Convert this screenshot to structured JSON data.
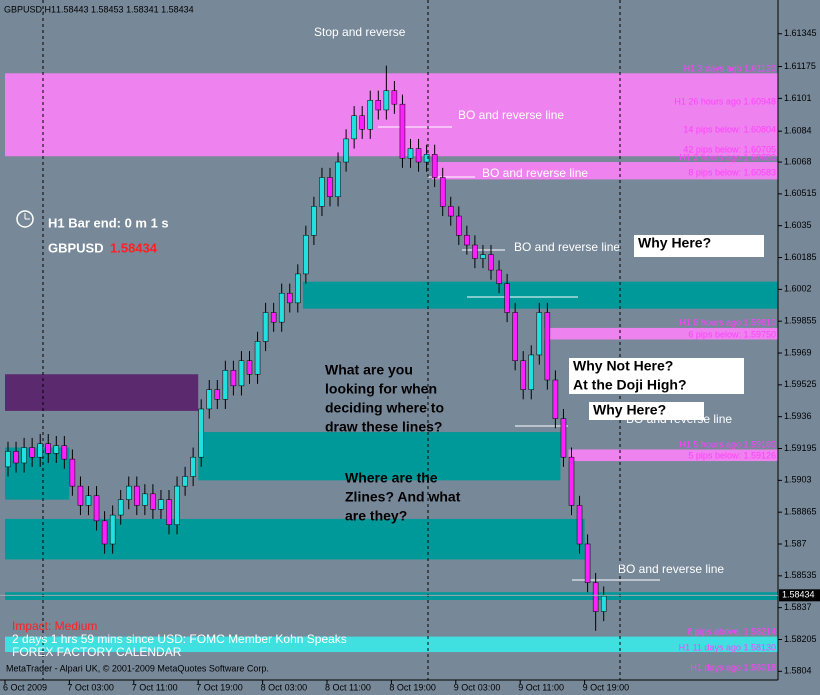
{
  "chart_data": {
    "type": "candlestick",
    "title": "GBPUSD,H1",
    "ohlc_text": "1.58443 1.58453 1.58341 1.58434",
    "ylim": [
      1.57995,
      1.6152
    ],
    "yticks": [
      1.61345,
      1.61175,
      1.6101,
      1.6084,
      1.6068,
      1.60515,
      1.6035,
      1.60185,
      1.6002,
      1.59855,
      1.5969,
      1.59525,
      1.5936,
      1.59195,
      1.5903,
      1.58865,
      1.587,
      1.58535,
      1.5837,
      1.58205,
      1.5804
    ],
    "last_price": 1.58434,
    "up_color": "#20e0e0",
    "down_color": "#ff20ff",
    "categories": [
      "6 Oct 2009",
      null,
      null,
      null,
      null,
      null,
      null,
      null,
      "7 Oct 03:00",
      null,
      null,
      null,
      null,
      null,
      null,
      null,
      "7 Oct 11:00",
      null,
      null,
      null,
      null,
      null,
      null,
      null,
      "7 Oct 19:00",
      null,
      null,
      null,
      null,
      null,
      null,
      null,
      "8 Oct 03:00",
      null,
      null,
      null,
      null,
      null,
      null,
      null,
      "8 Oct 11:00",
      null,
      null,
      null,
      null,
      null,
      null,
      null,
      "8 Oct 19:00",
      null,
      null,
      null,
      null,
      null,
      null,
      null,
      "9 Oct 03:00",
      null,
      null,
      null,
      null,
      null,
      null,
      null,
      "9 Oct 11:00",
      null,
      null,
      null,
      null,
      null,
      null,
      null,
      "9 Oct 19:00",
      null,
      null
    ],
    "open": [
      1.591,
      1.5918,
      1.5912,
      1.592,
      1.5915,
      1.5922,
      1.5917,
      1.5921,
      1.5914,
      1.59,
      1.589,
      1.5895,
      1.5882,
      1.587,
      1.5885,
      1.5893,
      1.59,
      1.589,
      1.5896,
      1.5888,
      1.5893,
      1.588,
      1.59,
      1.5905,
      1.5915,
      1.594,
      1.595,
      1.5945,
      1.596,
      1.5952,
      1.5965,
      1.5958,
      1.5975,
      1.599,
      1.5985,
      1.6,
      1.5995,
      1.601,
      1.603,
      1.6045,
      1.606,
      1.605,
      1.6068,
      1.608,
      1.6092,
      1.6085,
      1.61,
      1.6095,
      1.6105,
      1.6098,
      1.607,
      1.6075,
      1.6068,
      1.6072,
      1.606,
      1.6045,
      1.604,
      1.603,
      1.6025,
      1.6018,
      1.602,
      1.6012,
      1.6005,
      1.599,
      1.5965,
      1.595,
      1.5968,
      1.599,
      1.5955,
      1.5935,
      1.5915,
      1.589,
      1.587,
      1.585,
      1.5835
    ],
    "high": [
      1.5923,
      1.5923,
      1.5925,
      1.5925,
      1.5927,
      1.5927,
      1.5926,
      1.5926,
      1.5919,
      1.5905,
      1.59,
      1.59,
      1.5887,
      1.589,
      1.5898,
      1.5905,
      1.5905,
      1.5901,
      1.5901,
      1.5898,
      1.5898,
      1.5905,
      1.591,
      1.592,
      1.5945,
      1.5955,
      1.5955,
      1.5965,
      1.5965,
      1.597,
      1.597,
      1.598,
      1.5995,
      1.5995,
      1.6005,
      1.6005,
      1.6015,
      1.6035,
      1.605,
      1.6065,
      1.6065,
      1.6073,
      1.6085,
      1.6097,
      1.6097,
      1.6105,
      1.6105,
      1.6118,
      1.611,
      1.6103,
      1.608,
      1.608,
      1.6077,
      1.6077,
      1.6065,
      1.605,
      1.6045,
      1.6035,
      1.603,
      1.6025,
      1.6025,
      1.6017,
      1.601,
      1.5995,
      1.597,
      1.5973,
      1.5995,
      1.5995,
      1.596,
      1.594,
      1.592,
      1.5895,
      1.5875,
      1.5855,
      1.5848
    ],
    "low": [
      1.5905,
      1.5907,
      1.5907,
      1.591,
      1.591,
      1.5912,
      1.5912,
      1.5909,
      1.5895,
      1.5885,
      1.5885,
      1.5877,
      1.5865,
      1.5865,
      1.588,
      1.5888,
      1.5885,
      1.5885,
      1.5883,
      1.5883,
      1.5875,
      1.5875,
      1.5895,
      1.59,
      1.591,
      1.5935,
      1.594,
      1.594,
      1.5947,
      1.5947,
      1.5953,
      1.5953,
      1.597,
      1.598,
      1.598,
      1.599,
      1.599,
      1.6005,
      1.6025,
      1.604,
      1.6045,
      1.6045,
      1.6063,
      1.6075,
      1.608,
      1.608,
      1.609,
      1.609,
      1.6093,
      1.6065,
      1.6065,
      1.6063,
      1.6063,
      1.6055,
      1.604,
      1.6035,
      1.6025,
      1.602,
      1.6013,
      1.6013,
      1.6007,
      1.6,
      1.5985,
      1.596,
      1.5945,
      1.5945,
      1.5963,
      1.595,
      1.593,
      1.591,
      1.5885,
      1.5865,
      1.5845,
      1.5825,
      1.583
    ],
    "close": [
      1.5918,
      1.5912,
      1.592,
      1.5915,
      1.5922,
      1.5917,
      1.5921,
      1.5914,
      1.59,
      1.589,
      1.5895,
      1.5882,
      1.587,
      1.5885,
      1.5893,
      1.59,
      1.589,
      1.5896,
      1.5888,
      1.5893,
      1.588,
      1.59,
      1.5905,
      1.5915,
      1.594,
      1.595,
      1.5945,
      1.596,
      1.5952,
      1.5965,
      1.5958,
      1.5975,
      1.599,
      1.5985,
      1.6,
      1.5995,
      1.601,
      1.603,
      1.6045,
      1.606,
      1.605,
      1.6068,
      1.608,
      1.6092,
      1.6085,
      1.61,
      1.6095,
      1.6105,
      1.6098,
      1.607,
      1.6075,
      1.6068,
      1.6072,
      1.606,
      1.6045,
      1.604,
      1.603,
      1.6025,
      1.6018,
      1.602,
      1.6012,
      1.6005,
      1.599,
      1.5965,
      1.595,
      1.5968,
      1.599,
      1.5955,
      1.5935,
      1.5915,
      1.589,
      1.587,
      1.585,
      1.5835,
      1.5843
    ],
    "zones": [
      {
        "top": 1.6114,
        "bottom": 1.6071,
        "start": 0,
        "end": null,
        "color": "#ee82ee"
      },
      {
        "top": 1.6068,
        "bottom": 1.6059,
        "start": 53,
        "end": null,
        "color": "#ee82ee"
      },
      {
        "top": 1.6006,
        "bottom": 1.5992,
        "start": 37,
        "end": null,
        "color": "#009999"
      },
      {
        "top": 1.5982,
        "bottom": 1.5976,
        "start": 67,
        "end": null,
        "color": "#ee82ee"
      },
      {
        "top": 1.5958,
        "bottom": 1.5939,
        "start": 0,
        "end": 24,
        "color": "#5b2a6e"
      },
      {
        "top": 1.5928,
        "bottom": 1.5903,
        "start": 24,
        "end": 69,
        "color": "#009999"
      },
      {
        "top": 1.592,
        "bottom": 1.5893,
        "start": 0,
        "end": 8,
        "color": "#009999"
      },
      {
        "top": 1.5919,
        "bottom": 1.5913,
        "start": 70,
        "end": null,
        "color": "#ee82ee"
      },
      {
        "top": 1.5883,
        "bottom": 1.5862,
        "start": 0,
        "end": 72,
        "color": "#009999"
      },
      {
        "top": 1.5845,
        "bottom": 1.5841,
        "start": 0,
        "end": null,
        "color": "#009999"
      },
      {
        "top": 1.5822,
        "bottom": 1.5814,
        "start": 0,
        "end": null,
        "color": "#40e0e0"
      }
    ],
    "level_labels": [
      "H1 3 days ago 1.61120",
      "H1 26 hours ago 1.60948",
      "14 pips below: 1.60804",
      "42 pips below: 1.60705",
      "H1 3 hours ago 1.60680",
      "8 pips below: 1.60583",
      "H1 8 hours ago 1.59810",
      "6 pips below: 1.59750",
      "H1 5 hours ago 1.59180",
      "5 pips below: 1.59126",
      "8 pips above: 1.58214",
      "H1 11 days ago 1.58130",
      "H1 days ago 1.58018"
    ],
    "line_notes": [
      "Stop and reverse",
      "BO and reverse line",
      "BO and reverse line",
      "BO and reverse line",
      "BO and reverse line",
      "BO and reverse line"
    ],
    "questions": [
      [
        "Why Here?"
      ],
      [
        "What are you",
        "looking for when",
        "deciding where to",
        "draw these lines?"
      ],
      [
        "Why Not Here?",
        "At the Doji High?"
      ],
      [
        "Why Here?"
      ],
      [
        "Where are the",
        "Zlines?  And what",
        "are they?"
      ]
    ],
    "bar_timer": "H1 Bar end: 0 m 1 s",
    "symbol": "GBPUSD",
    "symbol_price": 1.58434,
    "news": {
      "impact": "Impact: Medium",
      "event": "2 days 1 hrs 59 mins since USD: FOMC Member Kohn Speaks",
      "source": "FOREX FACTORY CALENDAR"
    },
    "footer": "MetaTrader - Alpari UK, © 2001-2009 MetaQuotes Software Corp."
  }
}
